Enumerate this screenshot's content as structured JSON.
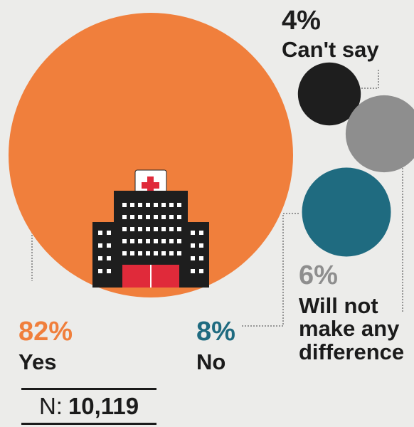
{
  "chart_data": {
    "type": "bubble",
    "categories": [
      "Yes",
      "No",
      "Can't say",
      "Will not make any difference"
    ],
    "values": [
      82,
      8,
      4,
      6
    ],
    "value_labels": [
      "82%",
      "8%",
      "4%",
      "6%"
    ],
    "colors": [
      "#f07f3c",
      "#1f6b80",
      "#1e1e1e",
      "#8e8e8e"
    ],
    "label_colors": [
      "#f07f3c",
      "#1f6b80",
      "#1e1e1e",
      "#8e8e8e"
    ],
    "wrapped_labels": {
      "difference": [
        "Will not",
        "make any",
        "difference"
      ]
    },
    "icon": "hospital-icon"
  },
  "sample": {
    "label": "N:",
    "value": "10,119"
  }
}
